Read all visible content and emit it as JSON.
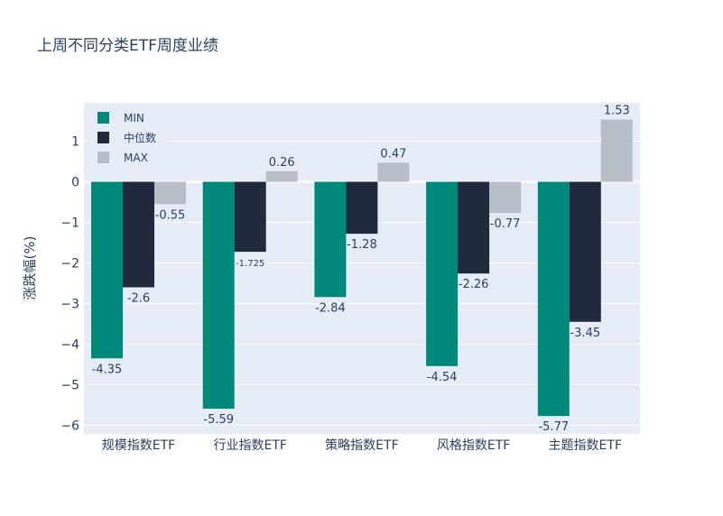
{
  "chart_data": {
    "type": "bar",
    "title": "上周不同分类ETF周度业绩",
    "ylabel": "涨跌幅(%)",
    "xlabel": "",
    "categories": [
      "规模指数ETF",
      "行业指数ETF",
      "策略指数ETF",
      "风格指数ETF",
      "主题指数ETF"
    ],
    "series": [
      {
        "name": "MIN",
        "color": "#00897b",
        "values": [
          -4.35,
          -5.59,
          -2.84,
          -4.54,
          -5.77
        ],
        "labels": [
          "-4.35",
          "-5.59",
          "-2.84",
          "-4.54",
          "-5.77"
        ]
      },
      {
        "name": "中位数",
        "color": "#1f2a3c",
        "values": [
          -2.6,
          -1.725,
          -1.28,
          -2.26,
          -3.45
        ],
        "labels": [
          "-2.6",
          "-1.725",
          "-1.28",
          "-2.26",
          "-3.45"
        ]
      },
      {
        "name": "MAX",
        "color": "#b8bec6",
        "values": [
          -0.55,
          0.26,
          0.47,
          -0.77,
          1.53
        ],
        "labels": [
          "-0.55",
          "0.26",
          "0.47",
          "-0.77",
          "1.53"
        ]
      }
    ],
    "yticks": [
      1,
      0,
      -1,
      -2,
      -3,
      -4,
      -5,
      -6
    ],
    "ytick_labels": [
      "1",
      "0",
      "−1",
      "−2",
      "−3",
      "−4",
      "−5",
      "−6"
    ],
    "ylim": [
      -6.2,
      1.93
    ],
    "grid": true,
    "legend_position": "top-left",
    "plot_background": "#e5ecf6"
  }
}
